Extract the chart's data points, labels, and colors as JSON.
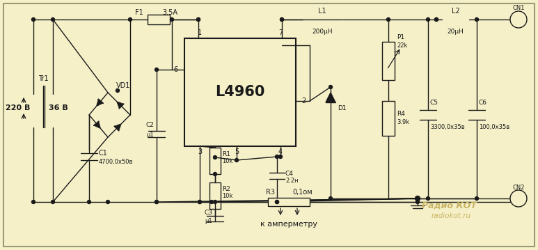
{
  "background_color": "#f5f0c8",
  "line_color": "#1a1a1a",
  "watermark_text1": "Радио КОТ",
  "watermark_text2": "radiokot.ru",
  "watermark_color": "#c8b464",
  "components": {
    "C1_val": "4700,0x50в",
    "C2_val": "μ1",
    "C3_val": "μ1",
    "C4_val": "2.2н",
    "C5_val": "3300,0x35в",
    "C6_val": "100,0x35в",
    "R1_val": "10k",
    "R2_val": "10k",
    "R3_val": "0,1ом",
    "R4_val": "3.9k",
    "P1_val": "22k",
    "L1_val": "200μН",
    "L2_val": "20μН",
    "F1_val": "3.5А",
    "IC_label": "L4960",
    "ammeter": "к амперметру"
  }
}
